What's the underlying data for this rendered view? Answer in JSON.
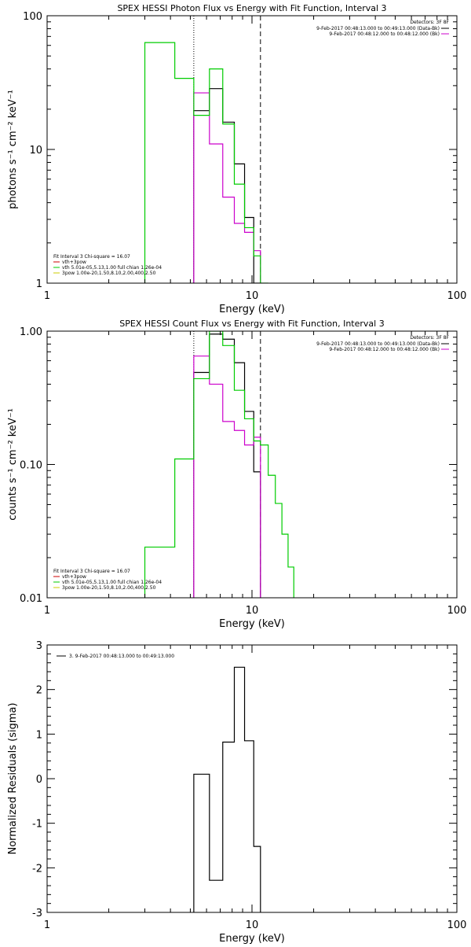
{
  "chart_data": [
    {
      "type": "line",
      "step": true,
      "title": "SPEX HESSI Photon Flux vs Energy with Fit Function, Interval 3",
      "xlabel": "Energy (keV)",
      "ylabel": "photons s⁻¹ cm⁻² keV⁻¹",
      "xscale": "log",
      "yscale": "log",
      "xlim": [
        1,
        100
      ],
      "ylim": [
        1,
        100
      ],
      "xticks": [
        {
          "v": 1,
          "label": "1"
        },
        {
          "v": 10,
          "label": "10"
        },
        {
          "v": 100,
          "label": "100"
        }
      ],
      "yticks": [
        {
          "v": 1,
          "label": "1"
        },
        {
          "v": 10,
          "label": "10"
        },
        {
          "v": 100,
          "label": "100"
        }
      ],
      "vlines": [
        {
          "x": 5.2,
          "style": "dotted"
        },
        {
          "x": 11.0,
          "style": "dashed"
        }
      ],
      "legend_header": "Detectors: 3F 8F",
      "legend_right": [
        {
          "text": "9-Feb-2017 00:48:13.000 to 00:49:13.000 (Data-Bk)",
          "color": "#000000"
        },
        {
          "text": "9-Feb-2017 00:48:12.000 to 00:48:12.000 (Bk)",
          "color": "#cc00cc"
        }
      ],
      "legend_left_header": "Fit Interval 3   Chi-square = 16.07",
      "legend_left": [
        {
          "text": "vth+3pow",
          "color": "#cc0000"
        },
        {
          "text": "vth 5.01e-05,5.13,1.00  full chian 1.26e-04",
          "color": "#00cc00"
        },
        {
          "text": "3pow 1.00e-20,1.50,8.10,2.00,400,2.50",
          "color": "#cccc00"
        }
      ],
      "series": [
        {
          "name": "Data-Bk",
          "color": "#000000",
          "edges": [
            5.2,
            6.2,
            7.2,
            8.2,
            9.2,
            10.2,
            11.0
          ],
          "values": [
            19.5,
            28.5,
            16.0,
            7.8,
            3.1,
            1.0
          ]
        },
        {
          "name": "Bk",
          "color": "#cc00cc",
          "edges": [
            5.2,
            6.2,
            7.2,
            8.2,
            9.2,
            10.2,
            11.0
          ],
          "values": [
            26.5,
            11.0,
            4.4,
            2.8,
            2.4,
            1.75
          ]
        },
        {
          "name": "vth",
          "color": "#00cc00",
          "edges": [
            3.0,
            4.2,
            5.2,
            6.2,
            7.2,
            8.2,
            9.2,
            10.2,
            11.0,
            12.0
          ],
          "values": [
            63,
            34,
            18,
            40,
            15.5,
            5.5,
            2.6,
            1.6,
            1.0
          ]
        }
      ]
    },
    {
      "type": "line",
      "step": true,
      "title": "SPEX HESSI Count Flux vs Energy with Fit Function, Interval 3",
      "xlabel": "Energy (keV)",
      "ylabel": "counts s⁻¹ cm⁻² keV⁻¹",
      "xscale": "log",
      "yscale": "log",
      "xlim": [
        1,
        100
      ],
      "ylim": [
        0.01,
        1.0
      ],
      "xticks": [
        {
          "v": 1,
          "label": "1"
        },
        {
          "v": 10,
          "label": "10"
        },
        {
          "v": 100,
          "label": "100"
        }
      ],
      "yticks": [
        {
          "v": 0.01,
          "label": "0.01"
        },
        {
          "v": 0.1,
          "label": "0.10"
        },
        {
          "v": 1,
          "label": "1.00"
        }
      ],
      "vlines": [
        {
          "x": 5.2,
          "style": "dotted"
        },
        {
          "x": 11.0,
          "style": "dashed"
        }
      ],
      "legend_header": "Detectors: 3F 8F",
      "legend_right": [
        {
          "text": "9-Feb-2017 00:48:13.000 to 00:49:13.000 (Data-Bk)",
          "color": "#000000"
        },
        {
          "text": "9-Feb-2017 00:48:12.000 to 00:48:12.000 (Bk)",
          "color": "#cc00cc"
        }
      ],
      "legend_left_header": "Fit Interval 3   Chi-square = 16.07",
      "legend_left": [
        {
          "text": "vth+3pow",
          "color": "#cc0000"
        },
        {
          "text": "vth 5.01e-05,5.13,1.00  full chian 1.26e-04",
          "color": "#00cc00"
        },
        {
          "text": "3pow 1.00e-20,1.50,8.10,2.00,400,2.50",
          "color": "#cccc00"
        }
      ],
      "series": [
        {
          "name": "Data-Bk",
          "color": "#000000",
          "edges": [
            5.2,
            6.2,
            7.2,
            8.2,
            9.2,
            10.2,
            11.0
          ],
          "values": [
            0.49,
            0.95,
            0.87,
            0.58,
            0.25,
            0.088
          ]
        },
        {
          "name": "Bk",
          "color": "#cc00cc",
          "edges": [
            5.2,
            6.2,
            7.2,
            8.2,
            9.2,
            10.2,
            11.0
          ],
          "values": [
            0.65,
            0.4,
            0.21,
            0.18,
            0.14,
            0.16
          ]
        },
        {
          "name": "vth",
          "color": "#00cc00",
          "edges": [
            3.0,
            4.2,
            5.2,
            6.2,
            7.2,
            8.2,
            9.2,
            10.2,
            11.0,
            12.0,
            13.0,
            14.0,
            15.0,
            16.0
          ],
          "values": [
            0.024,
            0.11,
            0.44,
            1.0,
            0.78,
            0.36,
            0.22,
            0.15,
            0.14,
            0.083,
            0.051,
            0.03,
            0.017
          ]
        }
      ]
    },
    {
      "type": "line",
      "step": true,
      "title": "",
      "xlabel": "Energy (keV)",
      "ylabel": "Normalized Residuals (sigma)",
      "xscale": "log",
      "yscale": "linear",
      "xlim": [
        1,
        100
      ],
      "ylim": [
        -3,
        3
      ],
      "xticks": [
        {
          "v": 1,
          "label": "1"
        },
        {
          "v": 10,
          "label": "10"
        },
        {
          "v": 100,
          "label": "100"
        }
      ],
      "yticks": [
        {
          "v": -3,
          "label": "-3"
        },
        {
          "v": -2,
          "label": "-2"
        },
        {
          "v": -1,
          "label": "-1"
        },
        {
          "v": 0,
          "label": "0"
        },
        {
          "v": 1,
          "label": "1"
        },
        {
          "v": 2,
          "label": "2"
        },
        {
          "v": 3,
          "label": "3"
        }
      ],
      "vlines": [],
      "legend_right": [],
      "legend_left": [],
      "legend_top_left": [
        {
          "text": "3. 9-Feb-2017 00:48:13.000 to 00:49:13.000",
          "color": "#000000"
        }
      ],
      "series": [
        {
          "name": "",
          "color": "#000000",
          "edges": [
            5.2,
            6.2,
            7.2,
            8.2,
            9.2,
            10.2,
            11.0
          ],
          "values": [
            0.1,
            -2.28,
            0.82,
            2.5,
            0.85,
            -1.52
          ]
        }
      ]
    }
  ]
}
